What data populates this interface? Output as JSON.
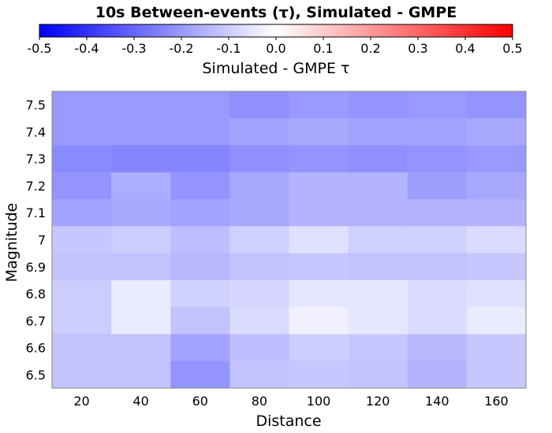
{
  "chart_data": {
    "type": "heatmap",
    "title": "10s Between-events (τ), Simulated - GMPE",
    "colorbar": {
      "label": "Simulated - GMPE τ",
      "ticks": [
        "-0.5",
        "-0.4",
        "-0.3",
        "-0.2",
        "-0.1",
        "0.0",
        "0.1",
        "0.2",
        "0.3",
        "0.4",
        "0.5"
      ],
      "range": [
        -0.5,
        0.5
      ],
      "colors": {
        "low": "#0000ff",
        "mid": "#ffffff",
        "high": "#ff0000"
      }
    },
    "xlabel": "Distance",
    "ylabel": "Magnitude",
    "x": [
      "20",
      "40",
      "60",
      "80",
      "100",
      "120",
      "140",
      "160"
    ],
    "y": [
      "7.5",
      "7.4",
      "7.3",
      "7.2",
      "7.1",
      "7",
      "6.9",
      "6.8",
      "6.7",
      "6.6",
      "6.5"
    ],
    "values": [
      [
        -0.2,
        -0.2,
        -0.2,
        -0.22,
        -0.2,
        -0.21,
        -0.2,
        -0.21
      ],
      [
        -0.2,
        -0.2,
        -0.2,
        -0.18,
        -0.17,
        -0.18,
        -0.18,
        -0.17
      ],
      [
        -0.23,
        -0.24,
        -0.24,
        -0.22,
        -0.21,
        -0.22,
        -0.21,
        -0.2
      ],
      [
        -0.21,
        -0.16,
        -0.21,
        -0.17,
        -0.15,
        -0.15,
        -0.19,
        -0.17
      ],
      [
        -0.18,
        -0.17,
        -0.18,
        -0.17,
        -0.15,
        -0.15,
        -0.15,
        -0.15
      ],
      [
        -0.11,
        -0.1,
        -0.13,
        -0.09,
        -0.06,
        -0.09,
        -0.09,
        -0.07
      ],
      [
        -0.12,
        -0.12,
        -0.14,
        -0.12,
        -0.11,
        -0.12,
        -0.12,
        -0.11
      ],
      [
        -0.1,
        -0.04,
        -0.09,
        -0.08,
        -0.05,
        -0.05,
        -0.07,
        -0.06
      ],
      [
        -0.1,
        -0.04,
        -0.12,
        -0.07,
        -0.03,
        -0.05,
        -0.07,
        -0.04
      ],
      [
        -0.12,
        -0.12,
        -0.18,
        -0.13,
        -0.1,
        -0.11,
        -0.14,
        -0.11
      ],
      [
        -0.12,
        -0.12,
        -0.21,
        -0.12,
        -0.11,
        -0.12,
        -0.15,
        -0.11
      ]
    ]
  }
}
